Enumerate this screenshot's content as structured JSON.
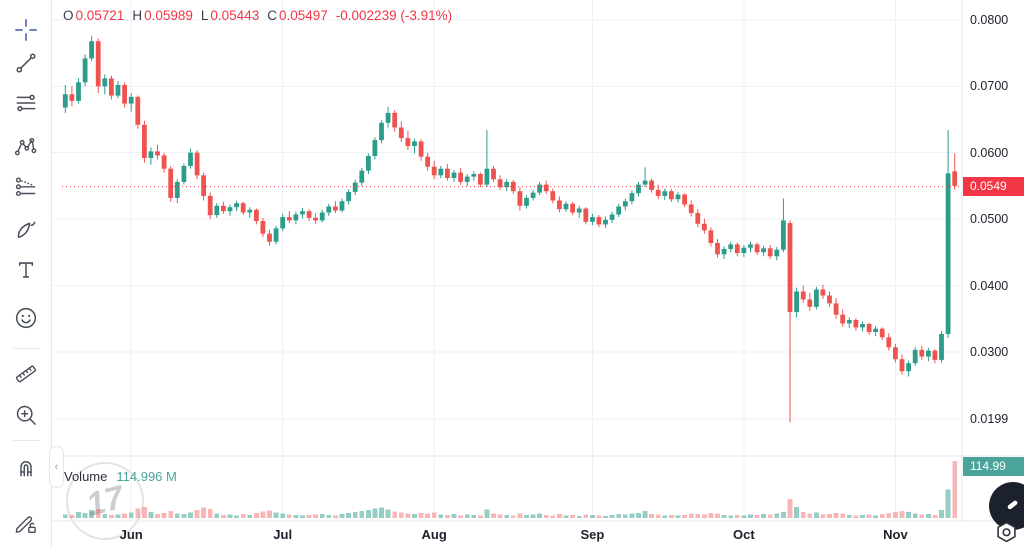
{
  "header": {
    "o_label": "O",
    "o_value": "0.05721",
    "h_label": "H",
    "h_value": "0.05989",
    "l_label": "L",
    "l_value": "0.05443",
    "c_label": "C",
    "c_value": "0.05497",
    "change": "-0.002239 (-3.91%)"
  },
  "watermark": {
    "text": "17"
  },
  "volume_legend": {
    "title": "Volume",
    "value": "114.996 M"
  },
  "icons": {
    "collapse": "‹"
  },
  "toolbar": {
    "tools": [
      "crosshair",
      "trend-line",
      "horizontal-lines",
      "xabcd-pattern",
      "forecast",
      "brush",
      "text",
      "emoji",
      "ruler",
      "zoom-in",
      "magnet",
      "drawing-lock"
    ],
    "active_tool": "crosshair",
    "active_color": "#6d7fbf"
  },
  "price_axis": {
    "ticks": [
      {
        "label": "0.0800",
        "value": 0.08
      },
      {
        "label": "0.0700",
        "value": 0.07
      },
      {
        "label": "0.0600",
        "value": 0.06
      },
      {
        "label": "0.0500",
        "value": 0.05
      },
      {
        "label": "0.0400",
        "value": 0.04
      },
      {
        "label": "0.0300",
        "value": 0.03
      },
      {
        "label": "0.0199",
        "value": 0.0199
      }
    ],
    "last_price": {
      "label": "0.0549",
      "value": 0.0549,
      "color": "#f23645"
    },
    "volume_label": {
      "label": "114.99",
      "value": 114.996,
      "color": "#4aa49a"
    }
  },
  "time_axis": {
    "months": [
      {
        "label": "Jun",
        "index": 10
      },
      {
        "label": "Jul",
        "index": 33
      },
      {
        "label": "Aug",
        "index": 56
      },
      {
        "label": "Sep",
        "index": 80
      },
      {
        "label": "Oct",
        "index": 103
      },
      {
        "label": "Nov",
        "index": 126
      }
    ]
  },
  "chart_data": {
    "type": "candlestick",
    "price_scale": 0.0001,
    "price_range_visible": [
      0.0199,
      0.08
    ],
    "price_line": {
      "value": 0.0549
    },
    "last_candle": {
      "open": 0.05721,
      "high": 0.05989,
      "low": 0.05443,
      "close": 0.05497,
      "change": -0.002239,
      "change_pct": -3.91
    },
    "last_volume": 114.996,
    "volume_unit": "M",
    "colors": {
      "up": "#2d9c8b",
      "down": "#ef5350",
      "vol_up": "rgba(45,156,139,0.5)",
      "vol_down": "rgba(239,83,80,0.42)",
      "price_line": "#f23645",
      "grid": "#eef1f7"
    },
    "candles": [
      [
        668,
        702,
        660,
        688
      ],
      [
        688,
        700,
        670,
        678
      ],
      [
        678,
        712,
        674,
        706
      ],
      [
        706,
        748,
        700,
        742
      ],
      [
        742,
        776,
        738,
        768
      ],
      [
        768,
        772,
        690,
        700
      ],
      [
        700,
        718,
        688,
        712
      ],
      [
        712,
        716,
        680,
        686
      ],
      [
        686,
        708,
        682,
        702
      ],
      [
        702,
        706,
        668,
        674
      ],
      [
        674,
        690,
        662,
        684
      ],
      [
        684,
        686,
        636,
        642
      ],
      [
        642,
        648,
        585,
        592
      ],
      [
        592,
        608,
        582,
        602
      ],
      [
        602,
        612,
        590,
        596
      ],
      [
        596,
        600,
        570,
        576
      ],
      [
        576,
        580,
        526,
        532
      ],
      [
        532,
        560,
        524,
        556
      ],
      [
        556,
        584,
        552,
        580
      ],
      [
        580,
        606,
        576,
        600
      ],
      [
        600,
        604,
        560,
        566
      ],
      [
        566,
        570,
        528,
        535
      ],
      [
        535,
        540,
        500,
        506
      ],
      [
        506,
        524,
        502,
        520
      ],
      [
        520,
        526,
        508,
        512
      ],
      [
        512,
        522,
        505,
        518
      ],
      [
        518,
        528,
        512,
        524
      ],
      [
        524,
        526,
        506,
        510
      ],
      [
        510,
        518,
        502,
        514
      ],
      [
        514,
        516,
        492,
        497
      ],
      [
        497,
        502,
        473,
        478
      ],
      [
        478,
        484,
        460,
        466
      ],
      [
        466,
        490,
        462,
        486
      ],
      [
        486,
        508,
        482,
        503
      ],
      [
        503,
        512,
        494,
        498
      ],
      [
        498,
        511,
        492,
        507
      ],
      [
        507,
        517,
        501,
        512
      ],
      [
        512,
        515,
        497,
        502
      ],
      [
        502,
        509,
        493,
        498
      ],
      [
        498,
        514,
        495,
        510
      ],
      [
        510,
        523,
        505,
        519
      ],
      [
        519,
        527,
        509,
        513
      ],
      [
        513,
        531,
        510,
        527
      ],
      [
        527,
        545,
        522,
        541
      ],
      [
        541,
        559,
        536,
        555
      ],
      [
        555,
        577,
        550,
        573
      ],
      [
        573,
        599,
        568,
        595
      ],
      [
        595,
        623,
        590,
        619
      ],
      [
        619,
        649,
        614,
        645
      ],
      [
        645,
        669,
        638,
        660
      ],
      [
        660,
        664,
        632,
        638
      ],
      [
        638,
        647,
        616,
        622
      ],
      [
        622,
        633,
        604,
        610
      ],
      [
        610,
        621,
        599,
        617
      ],
      [
        617,
        620,
        588,
        594
      ],
      [
        594,
        600,
        573,
        579
      ],
      [
        579,
        588,
        560,
        566
      ],
      [
        566,
        580,
        562,
        576
      ],
      [
        576,
        583,
        558,
        562
      ],
      [
        562,
        574,
        556,
        570
      ],
      [
        570,
        577,
        552,
        556
      ],
      [
        556,
        568,
        550,
        564
      ],
      [
        564,
        572,
        558,
        568
      ],
      [
        568,
        570,
        548,
        552
      ],
      [
        552,
        634,
        548,
        576
      ],
      [
        576,
        580,
        556,
        560
      ],
      [
        560,
        566,
        544,
        548
      ],
      [
        548,
        560,
        542,
        556
      ],
      [
        556,
        559,
        538,
        542
      ],
      [
        542,
        548,
        513,
        520
      ],
      [
        520,
        536,
        516,
        532
      ],
      [
        532,
        544,
        528,
        540
      ],
      [
        540,
        556,
        536,
        552
      ],
      [
        552,
        558,
        538,
        542
      ],
      [
        542,
        546,
        524,
        528
      ],
      [
        528,
        534,
        510,
        515
      ],
      [
        515,
        527,
        511,
        523
      ],
      [
        523,
        526,
        506,
        510
      ],
      [
        510,
        520,
        502,
        516
      ],
      [
        516,
        518,
        492,
        496
      ],
      [
        496,
        508,
        491,
        503
      ],
      [
        503,
        506,
        488,
        492
      ],
      [
        492,
        504,
        487,
        499
      ],
      [
        499,
        511,
        494,
        507
      ],
      [
        507,
        523,
        503,
        519
      ],
      [
        519,
        531,
        513,
        527
      ],
      [
        527,
        543,
        522,
        539
      ],
      [
        539,
        556,
        534,
        552
      ],
      [
        552,
        578,
        548,
        558
      ],
      [
        558,
        561,
        540,
        544
      ],
      [
        544,
        552,
        530,
        535
      ],
      [
        535,
        546,
        529,
        542
      ],
      [
        542,
        545,
        526,
        530
      ],
      [
        530,
        541,
        525,
        537
      ],
      [
        537,
        539,
        518,
        522
      ],
      [
        522,
        528,
        504,
        509
      ],
      [
        509,
        515,
        488,
        493
      ],
      [
        493,
        501,
        478,
        483
      ],
      [
        483,
        488,
        459,
        464
      ],
      [
        464,
        470,
        442,
        447
      ],
      [
        447,
        459,
        440,
        455
      ],
      [
        455,
        466,
        450,
        462
      ],
      [
        462,
        465,
        444,
        449
      ],
      [
        449,
        461,
        443,
        457
      ],
      [
        457,
        466,
        450,
        462
      ],
      [
        462,
        465,
        446,
        450
      ],
      [
        450,
        460,
        444,
        456
      ],
      [
        456,
        461,
        440,
        444
      ],
      [
        444,
        458,
        438,
        454
      ],
      [
        454,
        531,
        450,
        498
      ],
      [
        494,
        498,
        194,
        360
      ],
      [
        360,
        397,
        352,
        391
      ],
      [
        391,
        400,
        374,
        379
      ],
      [
        379,
        389,
        362,
        368
      ],
      [
        368,
        398,
        364,
        394
      ],
      [
        394,
        401,
        380,
        385
      ],
      [
        385,
        391,
        368,
        373
      ],
      [
        373,
        381,
        350,
        356
      ],
      [
        356,
        364,
        338,
        343
      ],
      [
        343,
        352,
        336,
        348
      ],
      [
        348,
        351,
        332,
        337
      ],
      [
        337,
        346,
        331,
        342
      ],
      [
        342,
        344,
        326,
        330
      ],
      [
        330,
        339,
        324,
        335
      ],
      [
        335,
        337,
        318,
        322
      ],
      [
        322,
        328,
        302,
        307
      ],
      [
        307,
        312,
        284,
        289
      ],
      [
        289,
        296,
        266,
        271
      ],
      [
        271,
        287,
        263,
        283
      ],
      [
        283,
        307,
        279,
        303
      ],
      [
        303,
        309,
        288,
        293
      ],
      [
        293,
        306,
        286,
        302
      ],
      [
        302,
        304,
        283,
        288
      ],
      [
        288,
        331,
        284,
        327
      ],
      [
        327,
        634,
        321,
        569
      ],
      [
        572,
        599,
        544,
        550
      ]
    ],
    "volumes": [
      7,
      6,
      12,
      10,
      16,
      18,
      8,
      6,
      7,
      9,
      11,
      19,
      22,
      12,
      8,
      10,
      14,
      9,
      8,
      11,
      16,
      21,
      18,
      9,
      6,
      7,
      5,
      8,
      6,
      10,
      13,
      15,
      11,
      9,
      7,
      6,
      5,
      6,
      7,
      8,
      6,
      5,
      8,
      10,
      12,
      14,
      16,
      19,
      21,
      17,
      13,
      11,
      9,
      8,
      10,
      9,
      11,
      7,
      6,
      8,
      5,
      7,
      6,
      5,
      17,
      9,
      7,
      6,
      5,
      9,
      6,
      7,
      9,
      6,
      5,
      8,
      5,
      6,
      4,
      7,
      6,
      5,
      4,
      6,
      8,
      7,
      9,
      10,
      14,
      8,
      7,
      5,
      6,
      5,
      6,
      9,
      8,
      7,
      10,
      9,
      6,
      5,
      6,
      5,
      7,
      6,
      8,
      7,
      9,
      12,
      38,
      22,
      12,
      9,
      11,
      7,
      8,
      10,
      9,
      6,
      5,
      6,
      7,
      5,
      8,
      10,
      12,
      14,
      12,
      9,
      7,
      8,
      6,
      16,
      58,
      115
    ]
  }
}
